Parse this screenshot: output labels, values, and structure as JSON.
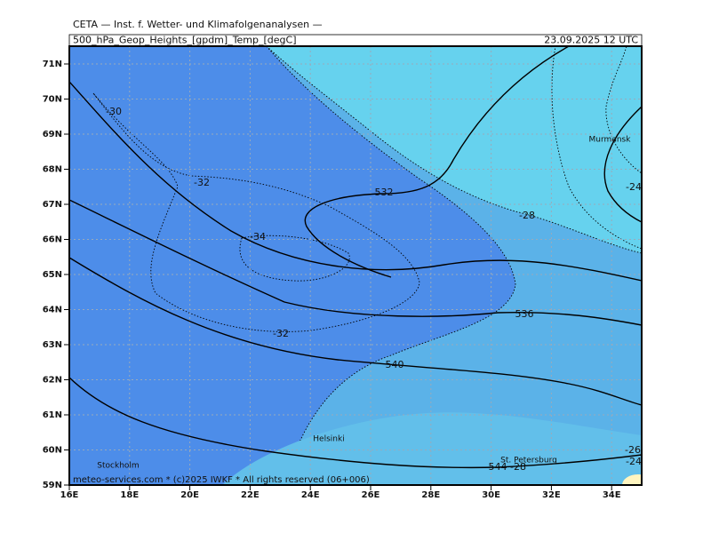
{
  "header": {
    "institute": "CETA — Inst. f. Wetter- und Klimafolgenanalysen —",
    "product": "500_hPa_Geop_Heights_[gpdm]_Temp_[degC]",
    "valid_time": "23.09.2025  12 UTC"
  },
  "axes": {
    "latitudes": [
      "59N",
      "60N",
      "61N",
      "62N",
      "63N",
      "64N",
      "65N",
      "66N",
      "67N",
      "68N",
      "69N",
      "70N",
      "71N"
    ],
    "longitudes": [
      "16E",
      "18E",
      "20E",
      "22E",
      "24E",
      "26E",
      "28E",
      "30E",
      "32E",
      "34E"
    ]
  },
  "contour_labels": [
    "-30",
    "-32",
    "-34",
    "-32",
    "532",
    "-28",
    "536",
    "540",
    "544",
    "-28",
    "-26",
    "-24",
    "-24"
  ],
  "cities": [
    "Murmansk",
    "Helsinki",
    "St. Petersburg",
    "Stockholm"
  ],
  "footer": "meteo-services.com  * (c)2025 IWKF * All rights reserved (06+006)"
}
